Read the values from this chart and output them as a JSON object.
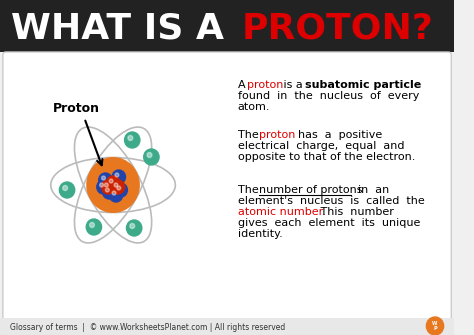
{
  "title_black": "WHAT IS A ",
  "title_red": "PROTON?",
  "bg_color": "#f0f0f0",
  "header_bg": "#222222",
  "content_bg": "#ffffff",
  "footer_bg": "#e0e0e0",
  "para1_normal": "A ",
  "para1_red": "proton",
  "para1_bold": " is a ",
  "para1_bold2": "subatomic particle",
  "para1_end": "\nfound  in  the  nucleus  of  every\natom.",
  "para2_start": "The  ",
  "para2_red": "proton",
  "para2_end": "  has  a  positive\nelectrical  charge,  equal  and\nopposite to that of the electron.",
  "para3_start": "The  ",
  "para3_underline": "number of protons",
  "para3_mid": "  in  an\nelement's  nucleus  is  called  the\n",
  "para3_red": "atomic number.",
  "para3_end": "   This  number\ngives  each  element  its  unique\nidentity.",
  "proton_label": "Proton",
  "footer_text": "Glossary of terms  |  © www.WorksheetsPlanet.com | All rights reserved",
  "electron_color": "#3dab8a",
  "nucleus_red": "#cc2200",
  "nucleus_blue": "#2244aa",
  "orbit_color": "#bbbbbb",
  "nucleus_ring": "#e87820"
}
